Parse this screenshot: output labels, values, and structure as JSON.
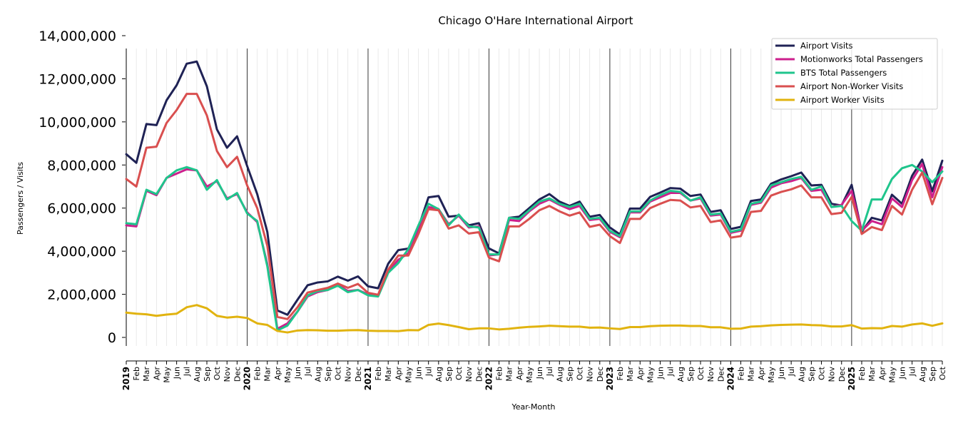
{
  "chart_data": {
    "type": "line",
    "title": "Chicago O'Hare International Airport",
    "xlabel": "Year-Month",
    "ylabel": "Passengers / Visits",
    "ylim": [
      0,
      14000000
    ],
    "yticks": [
      0,
      2000000,
      4000000,
      6000000,
      8000000,
      10000000,
      12000000,
      14000000
    ],
    "ytick_labels": [
      "0",
      "2,000,000",
      "4,000,000",
      "6,000,000",
      "8,000,000",
      "10,000,000",
      "12,000,000",
      "14,000,000"
    ],
    "x": [
      "2019",
      "Feb",
      "Mar",
      "Apr",
      "May",
      "Jun",
      "Jul",
      "Aug",
      "Sep",
      "Oct",
      "Nov",
      "Dec",
      "2020",
      "Feb",
      "Mar",
      "Apr",
      "May",
      "Jun",
      "Jul",
      "Aug",
      "Sep",
      "Oct",
      "Nov",
      "Dec",
      "2021",
      "Feb",
      "Mar",
      "Apr",
      "May",
      "Jun",
      "Jul",
      "Aug",
      "Sep",
      "Oct",
      "Nov",
      "Dec",
      "2022",
      "Feb",
      "Mar",
      "Apr",
      "May",
      "Jun",
      "Jul",
      "Aug",
      "Sep",
      "Oct",
      "Nov",
      "Dec",
      "2023",
      "Feb",
      "Mar",
      "Apr",
      "May",
      "Jun",
      "Jul",
      "Aug",
      "Sep",
      "Oct",
      "Nov",
      "Dec",
      "2024",
      "Feb",
      "Mar",
      "Apr",
      "May",
      "Jun",
      "Jul",
      "Aug",
      "Sep",
      "Oct",
      "Nov",
      "Dec",
      "2025",
      "Feb",
      "Mar",
      "Apr",
      "May",
      "Jun",
      "Jul",
      "Aug",
      "Sep",
      "Oct"
    ],
    "year_labels": [
      "2019",
      "2020",
      "2021",
      "2022",
      "2023",
      "2024",
      "2025"
    ],
    "grid": true,
    "legend_position": "top-right",
    "series": [
      {
        "name": "Airport Visits",
        "color": "#1f2255",
        "values": [
          8500000,
          8100000,
          9900000,
          9850000,
          11000000,
          11700000,
          12700000,
          12800000,
          11650000,
          9650000,
          8800000,
          9330000,
          7950000,
          6650000,
          4900000,
          1250000,
          1050000,
          1750000,
          2420000,
          2550000,
          2600000,
          2820000,
          2630000,
          2830000,
          2370000,
          2280000,
          3420000,
          4050000,
          4120000,
          5100000,
          6500000,
          6560000,
          5600000,
          5650000,
          5200000,
          5300000,
          4130000,
          3900000,
          5550000,
          5600000,
          6000000,
          6400000,
          6650000,
          6300000,
          6100000,
          6300000,
          5600000,
          5680000,
          5100000,
          4780000,
          5980000,
          5980000,
          6520000,
          6720000,
          6930000,
          6900000,
          6560000,
          6630000,
          5820000,
          5900000,
          5030000,
          5130000,
          6330000,
          6400000,
          7130000,
          7330000,
          7480000,
          7650000,
          7050000,
          7080000,
          6200000,
          6120000,
          7080000,
          4900000,
          5550000,
          5430000,
          6620000,
          6200000,
          7500000,
          8250000,
          6780000,
          8200000
        ]
      },
      {
        "name": "Motionworks Total Passengers",
        "color": "#cc1f8c",
        "values": [
          5200000,
          5150000,
          6800000,
          6600000,
          7400000,
          7600000,
          7800000,
          7750000,
          7000000,
          7250000,
          6450000,
          6650000,
          5800000,
          5350000,
          3400000,
          400000,
          650000,
          1200000,
          1900000,
          2100000,
          2200000,
          2450000,
          2150000,
          2200000,
          2000000,
          1950000,
          3050000,
          3600000,
          3900000,
          4950000,
          6050000,
          5950000,
          5250000,
          5650000,
          5100000,
          5150000,
          3800000,
          3850000,
          5450000,
          5400000,
          5850000,
          6200000,
          6400000,
          6150000,
          5950000,
          6100000,
          5450000,
          5500000,
          4900000,
          4650000,
          5800000,
          5800000,
          6300000,
          6500000,
          6700000,
          6700000,
          6350000,
          6450000,
          5650000,
          5700000,
          4850000,
          4950000,
          6150000,
          6250000,
          6950000,
          7150000,
          7250000,
          7400000,
          6800000,
          6850000,
          6050000,
          6150000,
          6800000,
          4950000,
          5400000,
          5250000,
          6450000,
          6050000,
          7300000,
          8050000,
          6500000,
          7900000
        ]
      },
      {
        "name": "BTS Total Passengers",
        "color": "#1fc58c",
        "values": [
          5300000,
          5250000,
          6850000,
          6650000,
          7400000,
          7750000,
          7900000,
          7750000,
          6850000,
          7300000,
          6400000,
          6700000,
          5750000,
          5400000,
          3300000,
          320000,
          550000,
          1200000,
          1950000,
          2150000,
          2200000,
          2400000,
          2100000,
          2200000,
          1950000,
          1900000,
          3000000,
          3450000,
          4100000,
          5200000,
          6200000,
          5950000,
          5200000,
          5700000,
          5150000,
          5100000,
          3850000,
          3850000,
          5550000,
          5500000,
          5900000,
          6300000,
          6450000,
          6200000,
          6050000,
          6200000,
          5500000,
          5550000,
          4950000,
          4700000,
          5850000,
          5850000,
          6350000,
          6600000,
          6800000,
          6750000,
          6350000,
          6500000,
          5700000,
          5750000,
          4900000,
          5000000,
          6200000,
          6300000,
          7050000,
          7200000,
          7350000,
          7450000,
          6850000,
          7000000,
          6050000,
          6100000,
          5400000,
          4950000,
          6400000,
          6400000,
          7350000,
          7850000,
          8000000,
          7700000,
          7200000,
          7700000
        ]
      },
      {
        "name": "Airport Non-Worker Visits",
        "color": "#d94f4f",
        "values": [
          7350000,
          7000000,
          8800000,
          8850000,
          9950000,
          10550000,
          11300000,
          11300000,
          10300000,
          8650000,
          7900000,
          8380000,
          7050000,
          6000000,
          4250000,
          950000,
          850000,
          1400000,
          2080000,
          2200000,
          2300000,
          2500000,
          2300000,
          2480000,
          2070000,
          1980000,
          3150000,
          3800000,
          3800000,
          4800000,
          5950000,
          5900000,
          5050000,
          5200000,
          4820000,
          4880000,
          3700000,
          3530000,
          5150000,
          5150000,
          5500000,
          5900000,
          6100000,
          5850000,
          5650000,
          5800000,
          5130000,
          5230000,
          4700000,
          4380000,
          5500000,
          5500000,
          6000000,
          6200000,
          6380000,
          6350000,
          6030000,
          6100000,
          5350000,
          5430000,
          4630000,
          4700000,
          5820000,
          5870000,
          6580000,
          6750000,
          6870000,
          7050000,
          6500000,
          6500000,
          5720000,
          5780000,
          6520000,
          4800000,
          5120000,
          4980000,
          6100000,
          5700000,
          6850000,
          7650000,
          6180000,
          7400000
        ]
      },
      {
        "name": "Airport Worker Visits",
        "color": "#e1b30f",
        "values": [
          1150000,
          1100000,
          1070000,
          1000000,
          1060000,
          1100000,
          1400000,
          1500000,
          1350000,
          1000000,
          920000,
          960000,
          900000,
          650000,
          580000,
          300000,
          230000,
          320000,
          340000,
          330000,
          310000,
          310000,
          330000,
          340000,
          310000,
          300000,
          300000,
          290000,
          340000,
          330000,
          580000,
          640000,
          570000,
          480000,
          380000,
          420000,
          420000,
          370000,
          400000,
          450000,
          490000,
          510000,
          540000,
          520000,
          500000,
          500000,
          450000,
          460000,
          420000,
          390000,
          480000,
          480000,
          520000,
          540000,
          550000,
          550000,
          530000,
          530000,
          470000,
          470000,
          400000,
          410000,
          500000,
          520000,
          560000,
          580000,
          590000,
          600000,
          570000,
          560000,
          510000,
          510000,
          570000,
          410000,
          430000,
          420000,
          530000,
          500000,
          600000,
          650000,
          540000,
          650000
        ]
      }
    ]
  }
}
